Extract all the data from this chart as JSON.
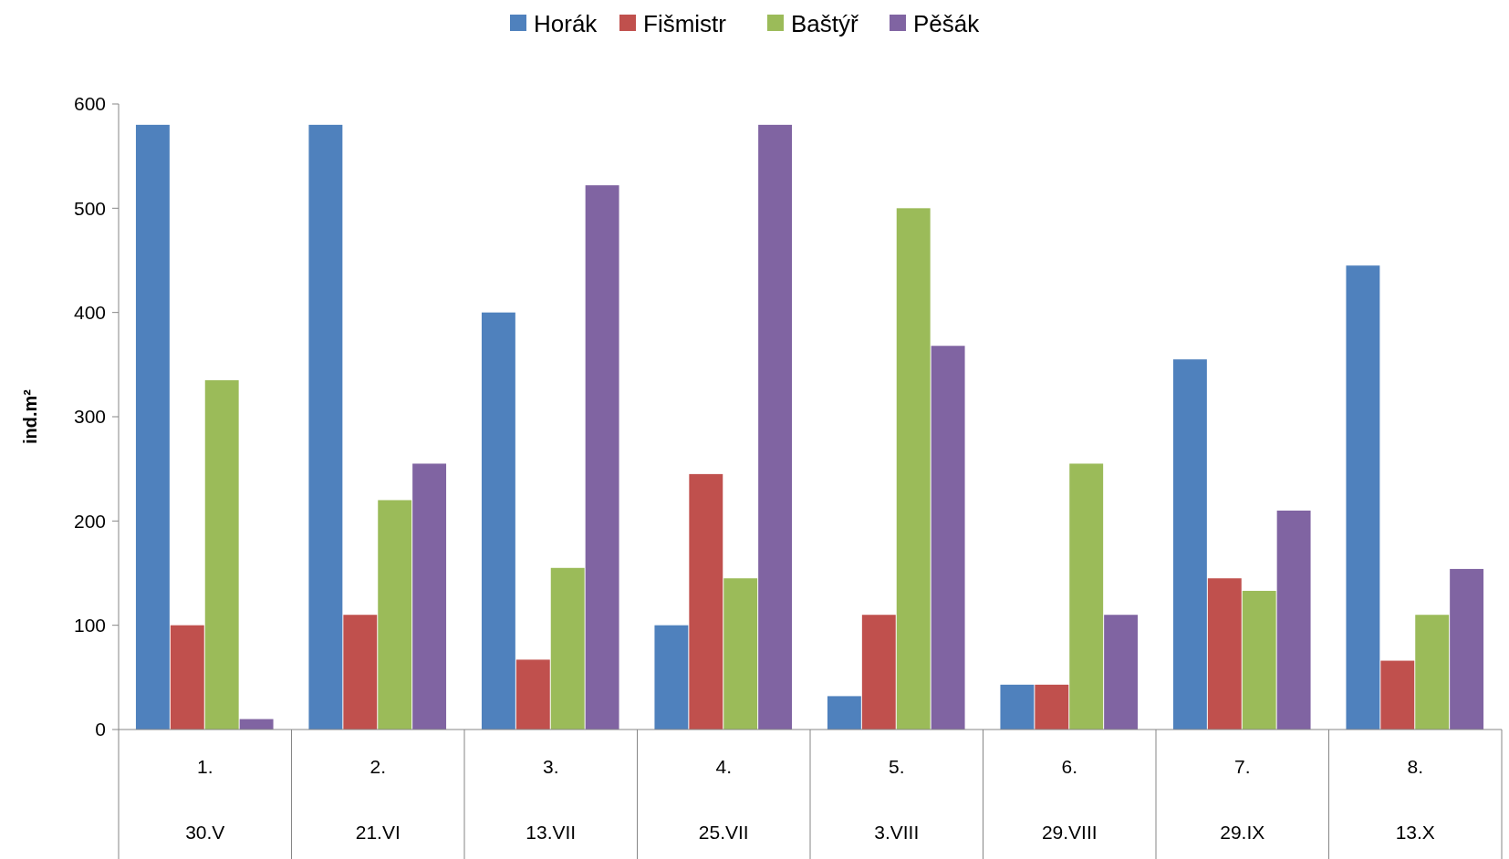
{
  "chart_data": {
    "type": "bar",
    "ylabel": "ind.m²",
    "legend": "top",
    "categories": [
      "1.\n30.V",
      "2.\n21.VI",
      "3.\n13.VII",
      "4.\n25.VII",
      "5.\n3.VIII",
      "6.\n29.VIII",
      "7.\n29.IX",
      "8.\n13.X"
    ],
    "ylim": [
      0,
      600
    ],
    "yticks": [
      0,
      100,
      200,
      300,
      400,
      500,
      600
    ],
    "grid": false,
    "series": [
      {
        "name": "Horák",
        "color": "#4f81bd",
        "values": [
          580,
          580,
          400,
          100,
          32,
          43,
          355,
          445
        ]
      },
      {
        "name": "Fišmistr",
        "color": "#c0504d",
        "values": [
          100,
          110,
          67,
          245,
          110,
          43,
          145,
          66
        ]
      },
      {
        "name": "Baštýř",
        "color": "#9bbb59",
        "values": [
          335,
          220,
          155,
          145,
          500,
          255,
          133,
          110
        ]
      },
      {
        "name": "Pěšák",
        "color": "#8064a2",
        "values": [
          10,
          255,
          522,
          580,
          368,
          110,
          210,
          154
        ]
      }
    ]
  }
}
